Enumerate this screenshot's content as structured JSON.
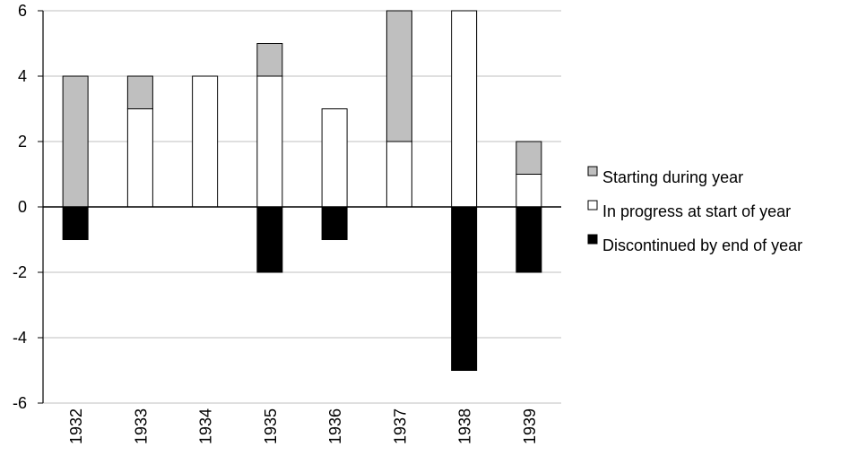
{
  "chart_data": {
    "type": "bar",
    "stacked": true,
    "title": "",
    "xlabel": "",
    "ylabel": "",
    "categories": [
      "1932",
      "1933",
      "1934",
      "1935",
      "1936",
      "1937",
      "1938",
      "1939"
    ],
    "series": [
      {
        "name": "In progress at start of year",
        "values": [
          0,
          3,
          4,
          4,
          3,
          2,
          6,
          1
        ],
        "color": "#ffffff"
      },
      {
        "name": "Starting during year",
        "values": [
          4,
          1,
          0,
          1,
          0,
          4,
          0,
          1
        ],
        "color": "#bfbfbf"
      },
      {
        "name": "Discontinued by end of year",
        "values": [
          -1,
          0,
          0,
          -2,
          -1,
          0,
          -5,
          -2
        ],
        "color": "#000000"
      }
    ],
    "ylim": [
      -6,
      6
    ],
    "yticks": [
      "-6",
      "-4",
      "-2",
      "0",
      "2",
      "4",
      "6"
    ],
    "grid": true,
    "legend": {
      "position": "right",
      "order": [
        "Starting during year",
        "In progress at start of year",
        "Discontinued by end of year"
      ]
    }
  }
}
